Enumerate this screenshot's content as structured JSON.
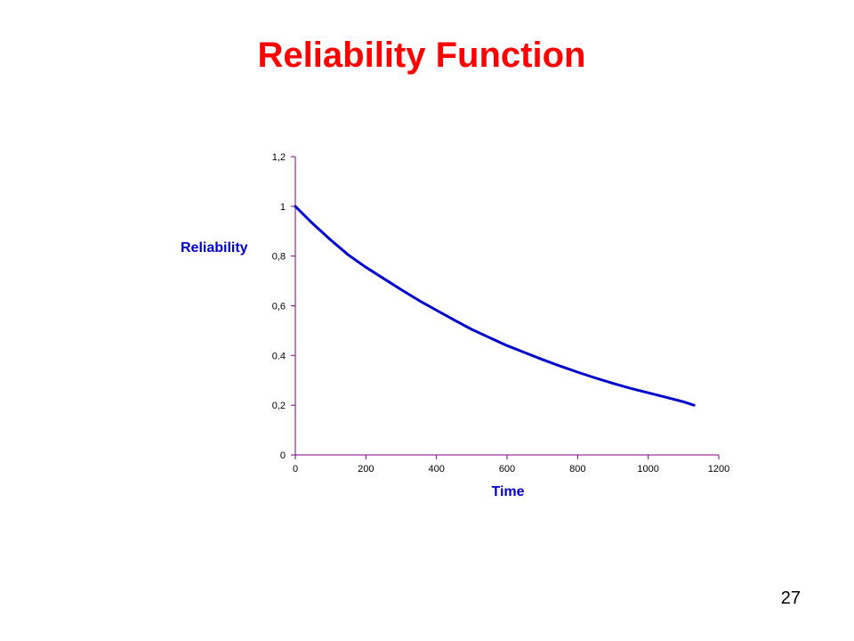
{
  "slide": {
    "title": "Reliability Function",
    "number": "27"
  },
  "colors": {
    "title": "#ff0000",
    "axis_title": "#0000cc",
    "axis_line": "#800080",
    "series": "#0000cc"
  },
  "chart_data": {
    "type": "line",
    "xlabel": "Time",
    "ylabel": "Reliability",
    "xlim": [
      0,
      1200
    ],
    "ylim": [
      0,
      1.2
    ],
    "x_ticks": [
      0,
      200,
      400,
      600,
      800,
      1000,
      1200
    ],
    "x_tick_labels": [
      "0",
      "200",
      "400",
      "600",
      "800",
      "1000",
      "1200"
    ],
    "y_ticks": [
      0,
      0.2,
      0.4,
      0.6,
      0.8,
      1,
      1.2
    ],
    "y_tick_labels": [
      "0",
      "0,2",
      "0.4",
      "0,6",
      "0,8",
      "1",
      "1,2"
    ],
    "grid": false,
    "legend": false,
    "series": [
      {
        "x": [
          0,
          50,
          100,
          150,
          200,
          250,
          300,
          350,
          400,
          450,
          500,
          550,
          600,
          650,
          700,
          750,
          800,
          850,
          900,
          950,
          1000,
          1050,
          1100,
          1130
        ],
        "y": [
          1.0,
          0.93,
          0.865,
          0.805,
          0.755,
          0.71,
          0.665,
          0.622,
          0.582,
          0.543,
          0.505,
          0.472,
          0.44,
          0.412,
          0.384,
          0.358,
          0.333,
          0.31,
          0.288,
          0.268,
          0.25,
          0.232,
          0.214,
          0.2
        ]
      }
    ]
  }
}
